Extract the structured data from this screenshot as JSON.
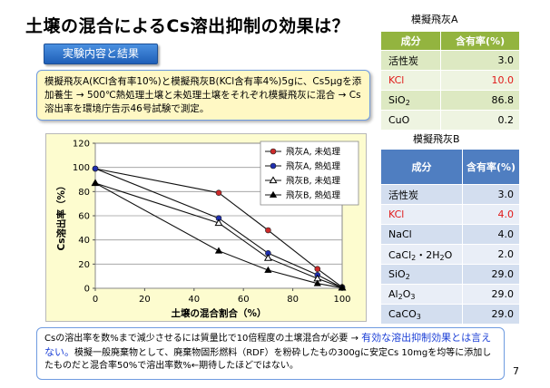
{
  "slide": {
    "title": "土壌の混合によるCs溶出抑制の効果は？",
    "section_label": "実験内容と結果",
    "summary": "模擬飛灰A(KCl含有率10%)と模擬飛灰B(KCl含有率4%)5gに、Cs5μgを添加養生 → 500℃熱処理土壌と未処理土壌をそれぞれ模擬飛灰に混合 → Cs溶出率を環境庁告示46号試験で測定。",
    "conclusion_part1": "Csの溶出率を数%まで減少させるには質量比で10倍程度の土壌混合が必要",
    "conclusion_arrow": " → ",
    "conclusion_highlight": "有効な溶出抑制効果とは言えない。",
    "conclusion_part2": "模擬一般廃棄物として、廃棄物固形燃料（RDF）を粉砕したもの300gに安定Cs 10mgを均等に添加したものだと混合率50%で溶出率数%←期待したほどではない。",
    "page_number": "7"
  },
  "tableA": {
    "title": "模擬飛灰A",
    "headers": [
      "成分",
      "含有率(%)"
    ],
    "rows": [
      {
        "name": "活性炭",
        "value": "3.0"
      },
      {
        "name": "KCl",
        "value": "10.0"
      },
      {
        "name": "SiO2",
        "value": "86.8"
      },
      {
        "name": "CuO",
        "value": "0.2"
      }
    ]
  },
  "tableB": {
    "title": "模擬飛灰B",
    "headers": [
      "成分",
      "含有率(%)"
    ],
    "rows": [
      {
        "name": "活性炭",
        "value": "3.0"
      },
      {
        "name": "KCl",
        "value": "4.0"
      },
      {
        "name": "NaCl",
        "value": "4.0"
      },
      {
        "name": "CaCl2・2H2O",
        "value": "2.0"
      },
      {
        "name": "SiO2",
        "value": "29.0"
      },
      {
        "name": "Al2O3",
        "value": "29.0"
      },
      {
        "name": "CaCO3",
        "value": "29.0"
      }
    ]
  },
  "colors": {
    "table_a_header": "#93b43f",
    "table_b_header": "#4f7ec1",
    "highlight_red": "#e01919",
    "highlight_blue": "#1b3fd6",
    "chart_background": "#fdfccf",
    "summary_background": "#fff8c4"
  },
  "chart_data": {
    "type": "line",
    "xlabel": "土壌の混合割合（%）",
    "ylabel": "Cs溶出率（%）",
    "xlim": [
      0,
      100
    ],
    "ylim": [
      0,
      120
    ],
    "xticks": [
      "0",
      "20",
      "40",
      "60",
      "80",
      "100"
    ],
    "yticks": [
      "0",
      "20",
      "40",
      "60",
      "80",
      "100",
      "120"
    ],
    "grid": "horizontal",
    "legend_position": "top-right",
    "series": [
      {
        "name": "飛灰A, 未処理",
        "marker": "circle",
        "color": "#cc2a2a",
        "x": [
          0,
          50,
          70,
          90,
          100
        ],
        "y": [
          99,
          79,
          48,
          16,
          1
        ]
      },
      {
        "name": "飛灰A, 熱処理",
        "marker": "circle",
        "color": "#1f2fb0",
        "x": [
          0,
          50,
          70,
          90,
          100
        ],
        "y": [
          99,
          58,
          29,
          11,
          0.5
        ]
      },
      {
        "name": "飛灰B, 未処理",
        "marker": "open-triangle",
        "color": "#000000",
        "x": [
          0,
          50,
          70,
          90,
          100
        ],
        "y": [
          87,
          54,
          25,
          8,
          0.5
        ]
      },
      {
        "name": "飛灰B, 熱処理",
        "marker": "triangle",
        "color": "#000000",
        "x": [
          0,
          50,
          70,
          90,
          100
        ],
        "y": [
          87,
          31,
          15,
          4,
          0.3
        ]
      }
    ]
  }
}
